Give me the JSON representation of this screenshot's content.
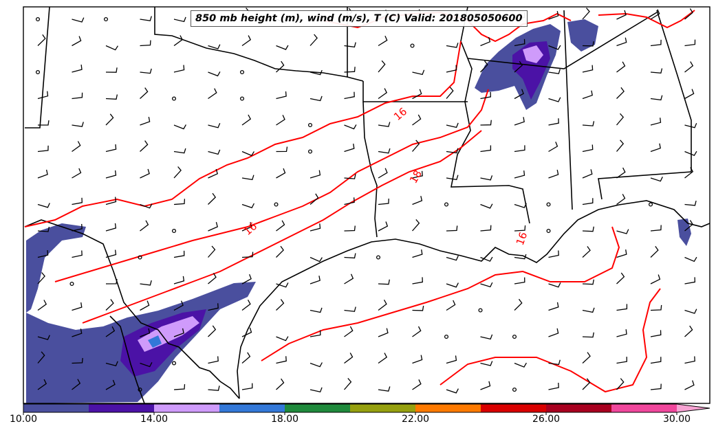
{
  "title": "850 mb height (m), wind (m/s), T (C) Valid: 201805050600",
  "contour_labels": [
    "16",
    "18",
    "16",
    "16"
  ],
  "colorbar": {
    "ticks": [
      "10.00",
      "14.00",
      "18.00",
      "22.00",
      "26.00",
      "30.00"
    ],
    "colors": [
      "#4a4f9e",
      "#4b12a6",
      "#cf9bfb",
      "#3378d8",
      "#1f8a3c",
      "#96a00f",
      "#ff7a00",
      "#d90000",
      "#a8001f",
      "#f0479c",
      "#f7a3d3"
    ]
  },
  "colors": {
    "temperature_contour": "#ff0000",
    "borders": "#000000",
    "wind_fill_light": "#4a4f9e"
  }
}
